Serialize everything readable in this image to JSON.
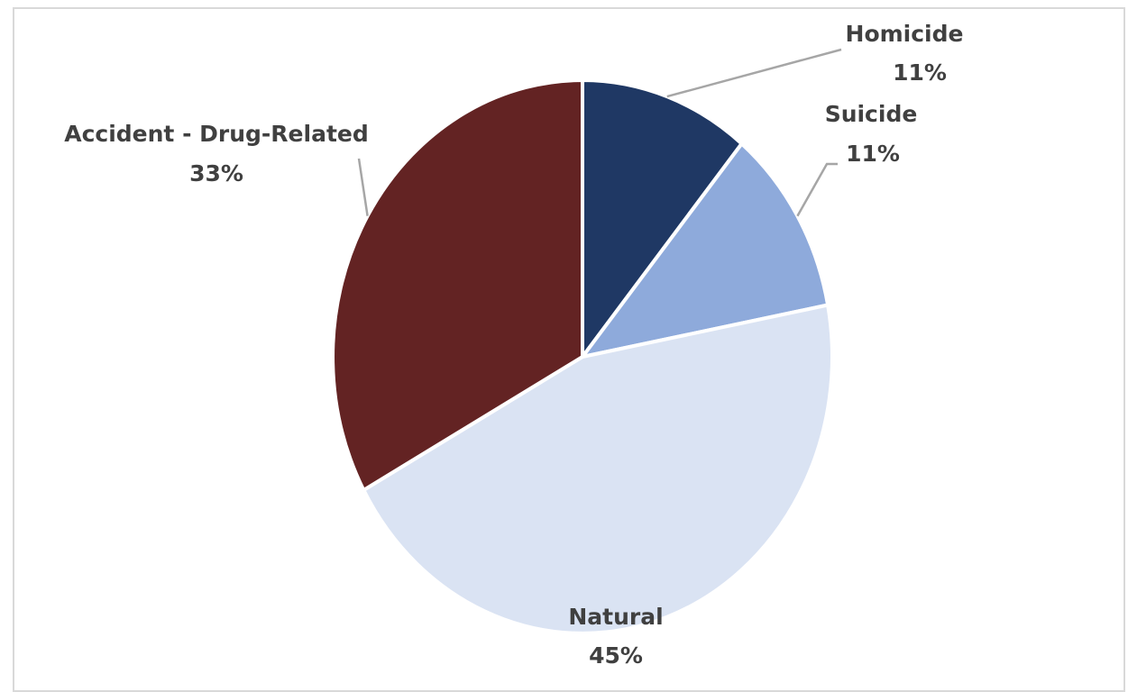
{
  "chart_data": {
    "type": "pie",
    "title": "",
    "slices": [
      {
        "label": "Homicide",
        "value": 11,
        "value_label": "11%",
        "color": "#1f3864"
      },
      {
        "label": "Suicide",
        "value": 11,
        "value_label": "11%",
        "color": "#8eaadb"
      },
      {
        "label": "Natural",
        "value": 45,
        "value_label": "45%",
        "color": "#dae3f3"
      },
      {
        "label": "Accident - Drug-Related",
        "value": 33,
        "value_label": "33%",
        "color": "#632323"
      }
    ],
    "start_angle": "12 o'clock",
    "direction": "clockwise",
    "legend": "none",
    "data_labels": "outside with leader lines"
  }
}
